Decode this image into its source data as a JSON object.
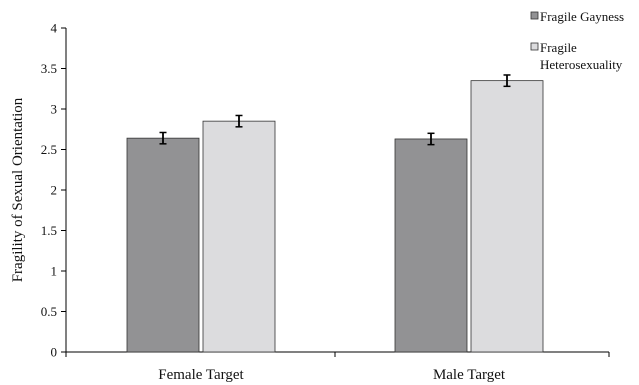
{
  "chart_data": {
    "type": "bar",
    "categories": [
      "Female Target",
      "Male Target"
    ],
    "series": [
      {
        "name": "Fragile Gayness",
        "name_lines": [
          "Fragile Gayness"
        ],
        "values": [
          2.64,
          2.63
        ],
        "error": [
          0.07,
          0.07
        ],
        "color": "#929294"
      },
      {
        "name": "Fragile Heterosexuality",
        "name_lines": [
          "Fragile",
          "Heterosexuality"
        ],
        "values": [
          2.85,
          3.35
        ],
        "error": [
          0.07,
          0.07
        ],
        "color": "#dcdcde"
      }
    ],
    "title": "",
    "xlabel": "",
    "ylabel": "Fragility of Sexual Orientation",
    "ylim": [
      0,
      4
    ],
    "yticks": [
      "0",
      "0.5",
      "1",
      "1.5",
      "2",
      "2.5",
      "3",
      "3.5",
      "4"
    ],
    "grid": false,
    "legend_position": "top-right",
    "colors": {
      "bar_stroke": "#333333",
      "axis": "#000000",
      "text": "#111111"
    }
  }
}
